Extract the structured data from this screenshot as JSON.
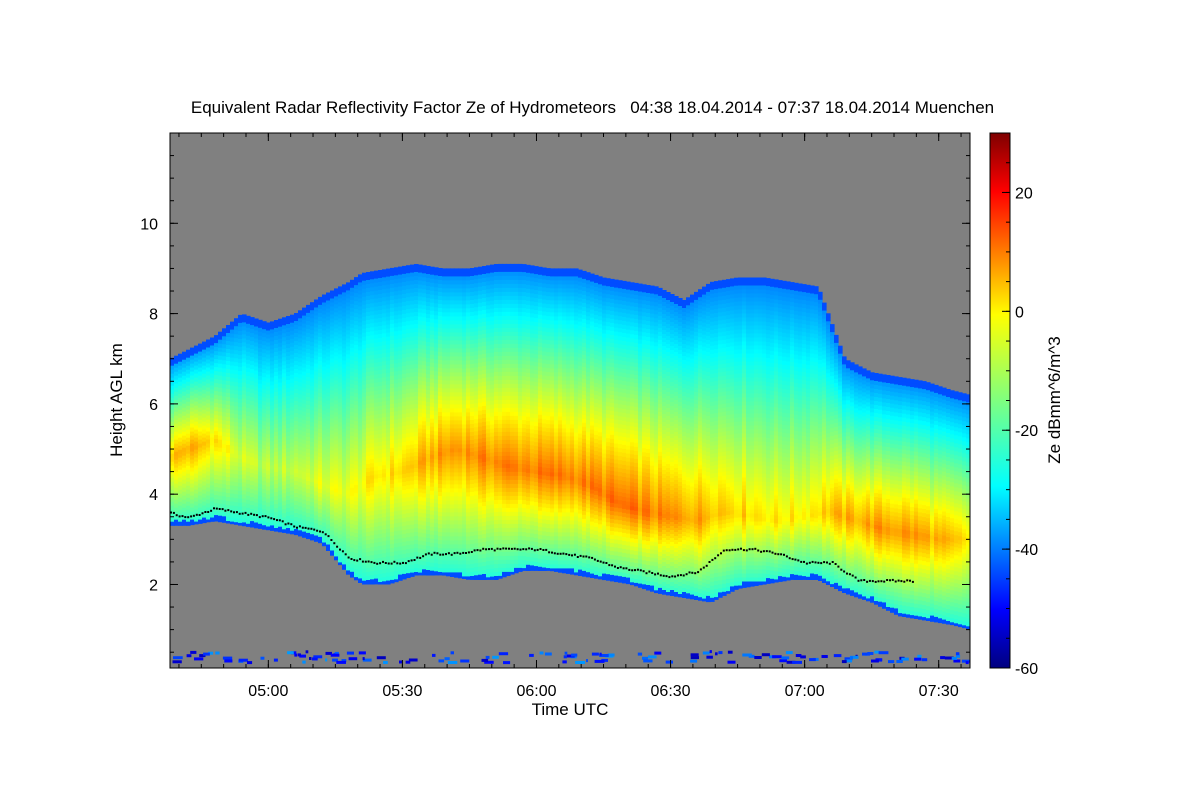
{
  "chart_data": {
    "type": "heatmap",
    "title": "Equivalent Radar Reflectivity Factor Ze of Hydrometeors   04:38 18.04.2014 - 07:37 18.04.2014 Muenchen",
    "xlabel": "Time UTC",
    "ylabel": "Height AGL km",
    "x_range_utc": [
      "04:38",
      "07:37"
    ],
    "x_ticks": [
      "05:00",
      "05:30",
      "06:00",
      "06:30",
      "07:00",
      "07:30"
    ],
    "x_tick_hours": [
      5.0,
      5.5,
      6.0,
      6.5,
      7.0,
      7.5
    ],
    "x_min_hours": 4.6333,
    "x_max_hours": 7.6167,
    "ylim_km": [
      0.15,
      12.0
    ],
    "y_ticks": [
      2,
      4,
      6,
      8,
      10
    ],
    "colorbar": {
      "label": "Ze dBmm^6/m^3",
      "range": [
        -60,
        30
      ],
      "ticks": [
        -60,
        -40,
        -20,
        0,
        20
      ],
      "colormap": "jet"
    },
    "missing_color": "#808080",
    "echo_envelope": {
      "time_hours": [
        4.633,
        4.7,
        4.8,
        4.9,
        5.0,
        5.1,
        5.2,
        5.3,
        5.35,
        5.45,
        5.55,
        5.65,
        5.75,
        5.85,
        5.95,
        6.05,
        6.15,
        6.25,
        6.35,
        6.45,
        6.55,
        6.65,
        6.75,
        6.85,
        6.95,
        7.05,
        7.15,
        7.25,
        7.35,
        7.45,
        7.55,
        7.617
      ],
      "top_km": [
        7.0,
        7.2,
        7.5,
        8.0,
        7.8,
        8.0,
        8.4,
        8.7,
        8.9,
        9.0,
        9.1,
        9.0,
        9.0,
        9.1,
        9.1,
        9.0,
        9.0,
        8.8,
        8.7,
        8.6,
        8.3,
        8.7,
        8.8,
        8.8,
        8.7,
        8.6,
        7.0,
        6.7,
        6.6,
        6.5,
        6.3,
        6.2
      ],
      "base_km": [
        3.3,
        3.3,
        3.4,
        3.3,
        3.2,
        3.1,
        2.9,
        2.2,
        2.0,
        2.0,
        2.2,
        2.2,
        2.1,
        2.1,
        2.3,
        2.3,
        2.2,
        2.1,
        2.0,
        1.8,
        1.7,
        1.6,
        1.9,
        2.0,
        2.1,
        2.1,
        1.8,
        1.6,
        1.3,
        1.2,
        1.1,
        1.0
      ]
    },
    "core": {
      "time_hours": [
        4.633,
        4.7,
        4.8,
        4.9,
        5.0,
        5.1,
        5.2,
        5.3,
        5.4,
        5.5,
        5.6,
        5.7,
        5.8,
        5.9,
        6.0,
        6.1,
        6.2,
        6.3,
        6.4,
        6.5,
        6.6,
        6.7,
        6.8,
        6.9,
        7.0,
        7.1,
        7.2,
        7.3,
        7.4,
        7.5,
        7.617
      ],
      "height_km": [
        4.8,
        5.0,
        5.2,
        4.8,
        4.6,
        4.5,
        4.2,
        4.0,
        4.4,
        4.5,
        4.8,
        5.0,
        4.8,
        4.6,
        4.5,
        4.4,
        4.2,
        3.8,
        3.6,
        3.5,
        3.4,
        3.6,
        3.5,
        3.4,
        3.5,
        3.6,
        3.4,
        3.2,
        3.1,
        3.0,
        3.0
      ],
      "ze_dbz": [
        2,
        4,
        0,
        -8,
        -10,
        -8,
        -6,
        -5,
        -2,
        0,
        4,
        6,
        7,
        8,
        8,
        8,
        8,
        9,
        8,
        6,
        5,
        2,
        0,
        -2,
        -2,
        2,
        4,
        6,
        6,
        3,
        -2
      ]
    },
    "melting_layer": {
      "time_hours": [
        4.633,
        4.7,
        4.8,
        4.9,
        5.0,
        5.1,
        5.2,
        5.3,
        5.4,
        5.5,
        5.6,
        5.7,
        5.8,
        5.9,
        6.0,
        6.1,
        6.2,
        6.3,
        6.4,
        6.5,
        6.6,
        6.7,
        6.8,
        6.9,
        7.0,
        7.1,
        7.2,
        7.3,
        7.4
      ],
      "height_km": [
        3.6,
        3.5,
        3.7,
        3.6,
        3.5,
        3.3,
        3.2,
        2.6,
        2.5,
        2.5,
        2.7,
        2.7,
        2.8,
        2.8,
        2.8,
        2.7,
        2.6,
        2.4,
        2.3,
        2.2,
        2.3,
        2.8,
        2.8,
        2.7,
        2.5,
        2.5,
        2.1,
        2.1,
        2.1
      ]
    }
  }
}
